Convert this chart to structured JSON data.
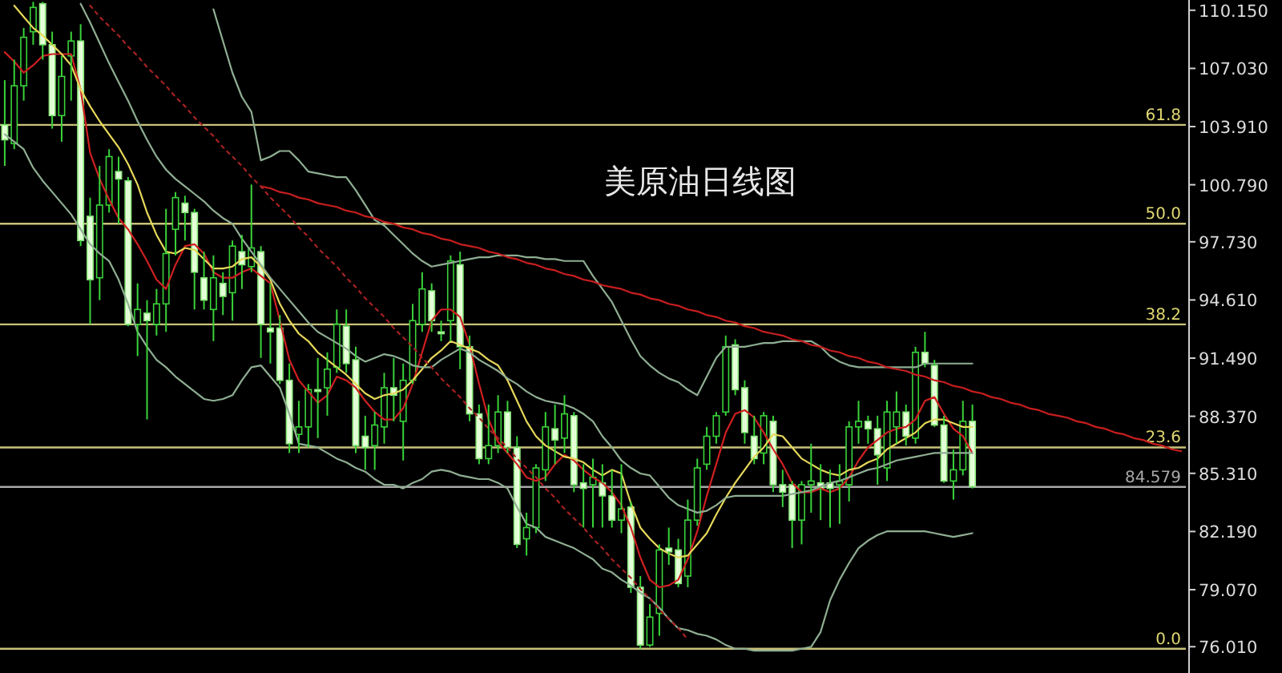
{
  "chart_data": {
    "type": "candlestick",
    "title": "美原油日线图",
    "categories": [
      null,
      null,
      null,
      null,
      null,
      null,
      null,
      null,
      null,
      null,
      null,
      null,
      null,
      null,
      null,
      null,
      null,
      null,
      null,
      null,
      null,
      null,
      null,
      null,
      null,
      null,
      null,
      null,
      null,
      null,
      null,
      null,
      null,
      null,
      null,
      null,
      null,
      null,
      null,
      null,
      null,
      null,
      null,
      null,
      null,
      null,
      null,
      null,
      null,
      null,
      null,
      null,
      null,
      null,
      null,
      null,
      null,
      null,
      null,
      null,
      null,
      null,
      null,
      null,
      null,
      null,
      null,
      null,
      null,
      null,
      null,
      null,
      null,
      null,
      null,
      null,
      null,
      null,
      null,
      null,
      null,
      null,
      null,
      null,
      null,
      null,
      null,
      null,
      null,
      null,
      null,
      null,
      null,
      null,
      null,
      null,
      null,
      null,
      null,
      null,
      null,
      null,
      null,
      null,
      null,
      null,
      null,
      null,
      null,
      null,
      null,
      null,
      null,
      null,
      null,
      null,
      null,
      null,
      null,
      null,
      null,
      null,
      null,
      null,
      null
    ],
    "ohlc": [
      [
        104.0,
        106.4,
        101.8,
        103.2
      ],
      [
        103.0,
        107.5,
        102.7,
        106.1
      ],
      [
        106.1,
        109.2,
        105.3,
        108.7
      ],
      [
        109.0,
        110.6,
        108.3,
        110.3
      ],
      [
        110.5,
        110.6,
        107.5,
        108.3
      ],
      [
        108.3,
        109.0,
        103.8,
        104.5
      ],
      [
        104.5,
        107.7,
        103.1,
        106.6
      ],
      [
        107.7,
        109.0,
        105.3,
        108.5
      ],
      [
        108.5,
        109.4,
        97.5,
        97.8
      ],
      [
        99.1,
        100.1,
        93.3,
        95.7
      ],
      [
        95.8,
        101.8,
        94.6,
        99.7
      ],
      [
        99.7,
        102.7,
        99.3,
        102.3
      ],
      [
        101.5,
        102.3,
        98.7,
        101.1
      ],
      [
        101.0,
        101.2,
        93.2,
        93.3
      ],
      [
        93.3,
        95.5,
        91.6,
        94.1
      ],
      [
        93.9,
        94.6,
        88.2,
        93.5
      ],
      [
        93.3,
        95.2,
        92.7,
        94.4
      ],
      [
        94.4,
        99.5,
        92.9,
        97.1
      ],
      [
        98.4,
        100.4,
        97.0,
        100.1
      ],
      [
        99.8,
        100.2,
        97.8,
        99.3
      ],
      [
        99.3,
        99.5,
        94.1,
        96.1
      ],
      [
        95.8,
        97.2,
        94.1,
        94.6
      ],
      [
        94.1,
        97.0,
        92.4,
        95.8
      ],
      [
        95.5,
        96.1,
        93.8,
        94.8
      ],
      [
        95.0,
        97.8,
        93.5,
        97.5
      ],
      [
        97.2,
        98.1,
        95.2,
        96.5
      ],
      [
        96.4,
        100.8,
        96.1,
        97.4
      ],
      [
        97.2,
        97.5,
        91.5,
        93.3
      ],
      [
        93.1,
        95.5,
        91.2,
        92.9
      ],
      [
        93.1,
        93.8,
        90.1,
        90.3
      ],
      [
        90.3,
        91.2,
        86.4,
        86.9
      ],
      [
        87.4,
        89.2,
        86.4,
        87.8
      ],
      [
        87.8,
        90.1,
        86.7,
        89.8
      ],
      [
        89.8,
        91.5,
        87.2,
        89.7
      ],
      [
        89.9,
        91.8,
        88.4,
        90.9
      ],
      [
        91.0,
        94.1,
        90.7,
        93.3
      ],
      [
        93.2,
        94.1,
        90.7,
        91.2
      ],
      [
        91.4,
        92.1,
        86.4,
        86.8
      ],
      [
        87.3,
        88.4,
        85.5,
        86.7
      ],
      [
        86.8,
        88.6,
        85.5,
        87.9
      ],
      [
        87.8,
        90.7,
        86.9,
        89.9
      ],
      [
        89.9,
        91.5,
        88.1,
        89.5
      ],
      [
        88.1,
        91.2,
        86.0,
        90.3
      ],
      [
        90.3,
        94.4,
        90.1,
        93.5
      ],
      [
        93.3,
        96.1,
        92.9,
        95.2
      ],
      [
        95.1,
        95.5,
        92.9,
        93.5
      ],
      [
        92.9,
        93.5,
        92.4,
        92.8
      ],
      [
        93.5,
        97.0,
        92.4,
        96.7
      ],
      [
        96.5,
        97.2,
        90.9,
        92.1
      ],
      [
        92.1,
        92.7,
        88.1,
        88.5
      ],
      [
        88.5,
        89.0,
        85.8,
        86.1
      ],
      [
        86.1,
        89.0,
        85.8,
        86.8
      ],
      [
        86.8,
        89.5,
        86.4,
        88.6
      ],
      [
        88.6,
        89.2,
        86.4,
        86.7
      ],
      [
        86.7,
        87.3,
        81.3,
        81.5
      ],
      [
        81.8,
        83.2,
        80.9,
        82.4
      ],
      [
        82.4,
        85.8,
        82.1,
        85.6
      ],
      [
        85.5,
        88.6,
        84.9,
        87.8
      ],
      [
        87.7,
        89.0,
        85.8,
        87.1
      ],
      [
        87.2,
        89.5,
        86.4,
        88.5
      ],
      [
        88.4,
        88.6,
        84.3,
        84.7
      ],
      [
        84.8,
        85.8,
        82.4,
        84.5
      ],
      [
        84.7,
        86.1,
        82.4,
        85.1
      ],
      [
        84.8,
        85.8,
        82.4,
        84.1
      ],
      [
        84.1,
        85.5,
        82.4,
        82.8
      ],
      [
        82.8,
        85.8,
        82.1,
        83.4
      ],
      [
        83.5,
        83.8,
        78.9,
        79.2
      ],
      [
        79.2,
        79.8,
        75.9,
        76.1
      ],
      [
        76.1,
        78.3,
        76.0,
        77.6
      ],
      [
        77.8,
        81.5,
        76.6,
        81.2
      ],
      [
        81.3,
        82.4,
        80.4,
        81.1
      ],
      [
        81.2,
        81.8,
        79.2,
        79.4
      ],
      [
        79.8,
        83.9,
        79.2,
        82.8
      ],
      [
        82.8,
        86.1,
        82.5,
        85.6
      ],
      [
        85.8,
        87.8,
        85.5,
        87.3
      ],
      [
        87.3,
        88.6,
        86.9,
        88.4
      ],
      [
        88.6,
        92.7,
        88.4,
        92.1
      ],
      [
        92.2,
        92.5,
        89.5,
        89.8
      ],
      [
        89.9,
        90.3,
        86.9,
        87.5
      ],
      [
        87.3,
        88.4,
        85.8,
        86.1
      ],
      [
        86.4,
        88.6,
        85.8,
        88.4
      ],
      [
        88.1,
        88.4,
        84.3,
        84.7
      ],
      [
        84.7,
        85.5,
        83.5,
        84.3
      ],
      [
        84.7,
        84.9,
        81.3,
        82.8
      ],
      [
        82.8,
        84.9,
        81.5,
        84.7
      ],
      [
        84.7,
        86.9,
        83.2,
        84.9
      ],
      [
        84.8,
        85.8,
        82.8,
        84.5
      ],
      [
        84.8,
        85.5,
        82.4,
        84.5
      ],
      [
        84.7,
        85.8,
        82.6,
        84.9
      ],
      [
        84.7,
        88.1,
        83.8,
        87.8
      ],
      [
        87.8,
        89.2,
        86.9,
        88.1
      ],
      [
        88.1,
        88.4,
        86.9,
        87.7
      ],
      [
        87.7,
        88.4,
        84.7,
        86.3
      ],
      [
        85.6,
        89.2,
        84.9,
        88.6
      ],
      [
        87.8,
        89.7,
        86.9,
        88.6
      ],
      [
        88.6,
        89.0,
        86.8,
        87.3
      ],
      [
        87.2,
        92.1,
        86.9,
        91.8
      ],
      [
        91.8,
        92.9,
        91.0,
        91.2
      ],
      [
        91.1,
        91.4,
        87.8,
        87.9
      ],
      [
        87.9,
        88.4,
        84.8,
        84.9
      ],
      [
        84.9,
        86.6,
        83.9,
        85.5
      ],
      [
        85.5,
        89.2,
        85.2,
        88.1
      ],
      [
        88.1,
        89.0,
        84.5,
        84.6
      ],
      null,
      null,
      null,
      null,
      null,
      null,
      null,
      null,
      null,
      null,
      null,
      null,
      null,
      null,
      null,
      null,
      null,
      null,
      null,
      null,
      null,
      null
    ],
    "series": [
      {
        "type": "line",
        "color": "#d02020",
        "values": [
          107.9,
          107.4,
          106.8,
          107.2,
          107.7,
          107.8,
          107.8,
          107.8,
          105.9,
          102.5,
          101.1,
          100.0,
          99.0,
          98.4,
          97.6,
          96.7,
          95.7,
          95.2,
          96.5,
          97.5,
          97.6,
          97.1,
          96.1,
          95.8,
          95.8,
          96.1,
          96.3,
          95.9,
          95.5,
          93.5,
          91.4,
          90.3,
          89.7,
          89.1,
          89.5,
          90.5,
          90.3,
          89.9,
          89.2,
          88.6,
          88.2,
          88.2,
          88.8,
          90.1,
          91.8,
          93.5,
          94.1,
          94.1,
          93.7,
          92.2,
          90.1,
          88.2,
          87.0,
          86.4,
          85.8,
          85.1,
          84.9,
          85.1,
          85.8,
          86.3,
          86.0,
          85.5,
          85.1,
          84.8,
          84.3,
          83.6,
          82.4,
          80.8,
          79.6,
          79.2,
          79.3,
          79.6,
          80.7,
          82.2,
          84.1,
          85.8,
          87.5,
          88.5,
          88.7,
          88.3,
          87.5,
          86.6,
          85.8,
          84.8,
          84.3,
          84.3,
          84.5,
          84.3,
          84.5,
          85.1,
          86.0,
          86.7,
          87.1,
          87.5,
          87.7,
          87.8,
          88.2,
          89.2,
          89.4,
          88.5,
          87.7,
          87.3,
          86.4,
          null,
          null,
          null,
          null,
          null,
          null,
          null,
          null,
          null,
          null,
          null,
          null,
          null,
          null,
          null,
          null,
          null,
          null,
          null,
          null,
          null,
          null
        ]
      },
      {
        "type": "line",
        "color": "#e6d85a",
        "values": [
          null,
          110.4,
          109.8,
          109.2,
          108.8,
          108.3,
          107.8,
          107.2,
          105.9,
          105.0,
          104.2,
          103.5,
          102.8,
          101.9,
          100.8,
          99.3,
          98.1,
          97.2,
          97.1,
          97.4,
          97.3,
          96.8,
          96.3,
          96.3,
          96.4,
          96.8,
          96.9,
          96.4,
          95.7,
          94.4,
          93.5,
          92.8,
          92.4,
          91.8,
          91.4,
          91.0,
          90.6,
          90.1,
          89.6,
          89.3,
          89.5,
          89.6,
          89.8,
          90.3,
          90.9,
          91.5,
          91.9,
          92.4,
          92.2,
          92.0,
          91.8,
          91.4,
          91.1,
          90.3,
          89.2,
          88.1,
          87.3,
          86.8,
          86.5,
          86.2,
          86.1,
          85.9,
          85.5,
          85.2,
          85.5,
          85.3,
          83.7,
          82.4,
          81.8,
          81.3,
          81.0,
          80.8,
          80.9,
          81.5,
          82.1,
          83.1,
          84.0,
          84.8,
          85.5,
          86.2,
          86.7,
          87.4,
          87.3,
          86.7,
          86.1,
          85.8,
          85.5,
          85.3,
          85.2,
          85.5,
          85.6,
          85.9,
          86.1,
          86.6,
          86.9,
          87.2,
          87.5,
          88.0,
          88.2,
          88.2,
          88.0,
          87.8,
          87.8,
          null,
          null,
          null,
          null,
          null,
          null,
          null,
          null,
          null,
          null,
          null,
          null,
          null,
          null,
          null,
          null,
          null,
          null,
          null,
          null,
          null,
          null
        ]
      },
      {
        "type": "line",
        "color": "#8fae92",
        "values": [
          null,
          null,
          null,
          null,
          null,
          null,
          null,
          null,
          null,
          null,
          null,
          null,
          null,
          null,
          null,
          null,
          null,
          null,
          null,
          null,
          null,
          null,
          110.2,
          108.5,
          106.8,
          105.5,
          104.7,
          102.1,
          102.3,
          102.6,
          102.6,
          102.1,
          101.5,
          101.4,
          101.3,
          101.2,
          101.2,
          100.5,
          99.7,
          98.9,
          98.6,
          98.1,
          97.6,
          97.1,
          96.7,
          96.4,
          96.5,
          96.6,
          96.7,
          96.8,
          96.9,
          96.9,
          97.0,
          97.0,
          97.0,
          96.9,
          96.9,
          96.8,
          96.8,
          96.7,
          96.7,
          96.7,
          95.9,
          95.2,
          94.5,
          93.5,
          92.5,
          91.6,
          91.1,
          90.7,
          90.4,
          90.2,
          89.8,
          89.5,
          90.5,
          91.5,
          92.1,
          92.1,
          92.1,
          92.2,
          92.3,
          92.3,
          92.4,
          92.4,
          92.4,
          92.4,
          92.1,
          91.6,
          91.3,
          91.1,
          91.0,
          91.0,
          91.0,
          91.0,
          91.0,
          91.0,
          91.0,
          91.2,
          91.2,
          91.2,
          91.2,
          91.2,
          91.2,
          null,
          null,
          null,
          null,
          null,
          null,
          null,
          null,
          null,
          null,
          null,
          null,
          null,
          null,
          null,
          null,
          null,
          null,
          null,
          null,
          null,
          null
        ]
      },
      {
        "type": "line",
        "color": "#8fae92",
        "values": [
          null,
          null,
          null,
          null,
          null,
          null,
          null,
          null,
          110.5,
          109.5,
          108.4,
          107.3,
          106.3,
          105.3,
          104.2,
          103.2,
          102.3,
          101.6,
          101.1,
          100.7,
          100.3,
          99.9,
          99.4,
          99.0,
          98.7,
          97.9,
          97.2,
          96.5,
          95.8,
          95.2,
          94.6,
          94.0,
          93.4,
          92.9,
          92.6,
          92.3,
          92.0,
          91.6,
          91.3,
          91.5,
          91.7,
          91.6,
          91.4,
          91.1,
          91.0,
          91.0,
          91.4,
          91.7,
          92.0,
          91.8,
          91.4,
          91.1,
          90.8,
          90.4,
          90.1,
          89.7,
          89.4,
          89.2,
          89.1,
          89.0,
          88.8,
          88.5,
          88.1,
          87.3,
          86.7,
          86.0,
          85.6,
          85.3,
          85.2,
          84.6,
          84.0,
          83.6,
          83.4,
          83.2,
          83.3,
          83.6,
          84.0,
          84.1,
          84.1,
          84.1,
          84.1,
          84.1,
          84.1,
          84.2,
          84.3,
          84.4,
          84.6,
          84.8,
          84.9,
          85.1,
          85.3,
          85.5,
          85.6,
          85.8,
          86.0,
          86.1,
          86.2,
          86.3,
          86.4,
          86.4,
          86.4,
          86.4,
          86.4,
          null,
          null,
          null,
          null,
          null,
          null,
          null,
          null,
          null,
          null,
          null,
          null,
          null,
          null,
          null,
          null,
          null,
          null,
          null,
          null,
          null,
          null
        ]
      },
      {
        "type": "line",
        "color": "#8fae92",
        "values": [
          103.5,
          103.1,
          102.7,
          101.7,
          101.0,
          100.4,
          99.8,
          99.2,
          98.4,
          97.6,
          97.1,
          96.7,
          95.7,
          94.4,
          92.9,
          92.1,
          91.4,
          91.0,
          90.5,
          90.1,
          89.7,
          89.3,
          89.2,
          89.3,
          89.5,
          90.3,
          91.0,
          91.1,
          90.5,
          89.9,
          88.5,
          86.9,
          86.8,
          86.7,
          86.4,
          86.1,
          85.9,
          85.6,
          85.4,
          85.0,
          84.7,
          84.7,
          84.5,
          84.8,
          85.0,
          85.4,
          85.5,
          85.4,
          85.2,
          85.1,
          85.0,
          85.0,
          84.8,
          84.5,
          83.5,
          82.6,
          82.4,
          81.9,
          81.7,
          81.5,
          81.3,
          81.0,
          80.7,
          80.2,
          80.0,
          79.6,
          79.3,
          78.9,
          78.6,
          78.1,
          77.5,
          77.0,
          76.9,
          76.7,
          76.6,
          76.4,
          76.1,
          75.9,
          75.9,
          75.8,
          75.8,
          75.8,
          75.8,
          75.8,
          75.9,
          76.0,
          76.8,
          78.5,
          79.6,
          80.5,
          81.3,
          81.7,
          82.0,
          82.2,
          82.2,
          82.2,
          82.2,
          82.2,
          82.1,
          82.0,
          81.9,
          82.0,
          82.1,
          null,
          null,
          null,
          null,
          null,
          null,
          null,
          null,
          null,
          null,
          null,
          null,
          null,
          null,
          null,
          null,
          null,
          null,
          null,
          null,
          null,
          null
        ]
      },
      {
        "type": "line",
        "color": "#c81e1e",
        "values": [
          null,
          null,
          null,
          null,
          null,
          null,
          null,
          null,
          null,
          null,
          null,
          null,
          null,
          null,
          null,
          null,
          null,
          null,
          null,
          null,
          null,
          null,
          null,
          null,
          null,
          null,
          null,
          100.7,
          100.6,
          100.4,
          100.3,
          100.1,
          100.0,
          99.8,
          99.7,
          99.6,
          99.4,
          99.3,
          99.1,
          99.0,
          98.8,
          98.7,
          98.5,
          98.4,
          98.2,
          98.1,
          97.9,
          97.8,
          97.6,
          97.5,
          97.4,
          97.2,
          97.1,
          96.9,
          96.8,
          96.6,
          96.5,
          96.3,
          96.2,
          96.0,
          95.9,
          95.7,
          95.6,
          95.4,
          95.3,
          95.2,
          95.0,
          94.9,
          94.7,
          94.6,
          94.4,
          94.3,
          94.1,
          94.0,
          93.8,
          93.7,
          93.5,
          93.4,
          93.2,
          93.1,
          92.9,
          92.8,
          92.7,
          92.5,
          92.4,
          92.2,
          92.1,
          91.9,
          91.8,
          91.6,
          91.5,
          91.3,
          91.2,
          91.0,
          90.9,
          90.8,
          90.6,
          90.5,
          90.3,
          90.2,
          90.0,
          89.9,
          89.7,
          89.6,
          89.4,
          89.3,
          89.1,
          89.0,
          88.8,
          88.7,
          88.5,
          88.4,
          88.3,
          88.1,
          88.0,
          87.8,
          87.7,
          87.5,
          87.4,
          87.2,
          87.1,
          86.9,
          86.8,
          86.6,
          86.5
        ]
      },
      {
        "type": "line",
        "color": "#a82222",
        "line_style": "dotted",
        "values": [
          null,
          null,
          null,
          null,
          null,
          null,
          null,
          null,
          null,
          110.4,
          109.8,
          109.3,
          108.8,
          108.2,
          107.7,
          107.1,
          106.6,
          106.1,
          105.5,
          105.0,
          104.4,
          103.9,
          103.4,
          102.8,
          102.3,
          101.8,
          101.2,
          100.7,
          100.1,
          99.6,
          99.1,
          98.5,
          98.0,
          97.4,
          96.9,
          96.4,
          95.8,
          95.3,
          94.7,
          94.2,
          93.7,
          93.1,
          92.6,
          92.1,
          91.5,
          91.0,
          90.4,
          89.9,
          89.4,
          88.8,
          88.3,
          87.7,
          87.2,
          86.7,
          86.1,
          85.6,
          85.1,
          84.5,
          84.0,
          83.4,
          82.9,
          82.4,
          81.8,
          81.3,
          80.7,
          80.2,
          79.7,
          79.1,
          78.6,
          78.0,
          77.5,
          77.0,
          76.4,
          null,
          null,
          null,
          null,
          null,
          null,
          null,
          null,
          null,
          null,
          null,
          null,
          null,
          null,
          null,
          null,
          null,
          null,
          null,
          null,
          null,
          null,
          null,
          null,
          null,
          null,
          null,
          null,
          null,
          null,
          null,
          null,
          null,
          null,
          null,
          null,
          null,
          null,
          null,
          null,
          null,
          null,
          null,
          null,
          null,
          null,
          null,
          null,
          null,
          null,
          null,
          null
        ]
      }
    ],
    "ylim": [
      74.6,
      110.7
    ],
    "yticks": [
      {
        "value": 110.15,
        "label": "110.150"
      },
      {
        "value": 107.03,
        "label": "107.030"
      },
      {
        "value": 103.91,
        "label": "103.910"
      },
      {
        "value": 100.79,
        "label": "100.790"
      },
      {
        "value": 97.73,
        "label": "97.730"
      },
      {
        "value": 94.61,
        "label": "94.610"
      },
      {
        "value": 91.49,
        "label": "91.490"
      },
      {
        "value": 88.37,
        "label": "88.370"
      },
      {
        "value": 85.31,
        "label": "85.310"
      },
      {
        "value": 82.19,
        "label": "82.190"
      },
      {
        "value": 79.07,
        "label": "79.070"
      },
      {
        "value": 76.01,
        "label": "76.010"
      }
    ],
    "ref_lines": [
      {
        "axis": "y",
        "value": 104.0,
        "color": "#c9c27a"
      },
      {
        "axis": "y",
        "value": 98.7,
        "color": "#c9c27a"
      },
      {
        "axis": "y",
        "value": 93.3,
        "color": "#c9c27a"
      },
      {
        "axis": "y",
        "value": 86.7,
        "color": "#c9c27a"
      },
      {
        "axis": "y",
        "value": 75.9,
        "color": "#c9c27a"
      },
      {
        "axis": "y",
        "value": 84.579,
        "label": "84.579",
        "color": "#a8a8a8"
      }
    ],
    "annotations": [
      {
        "text": "61.8",
        "y": 104.0
      },
      {
        "text": "50.0",
        "y": 98.7
      },
      {
        "text": "38.2",
        "y": 93.3
      },
      {
        "text": "23.6",
        "y": 86.7
      },
      {
        "text": "0.0",
        "y": 75.9
      }
    ],
    "tick_labels": "y",
    "grid": false
  }
}
